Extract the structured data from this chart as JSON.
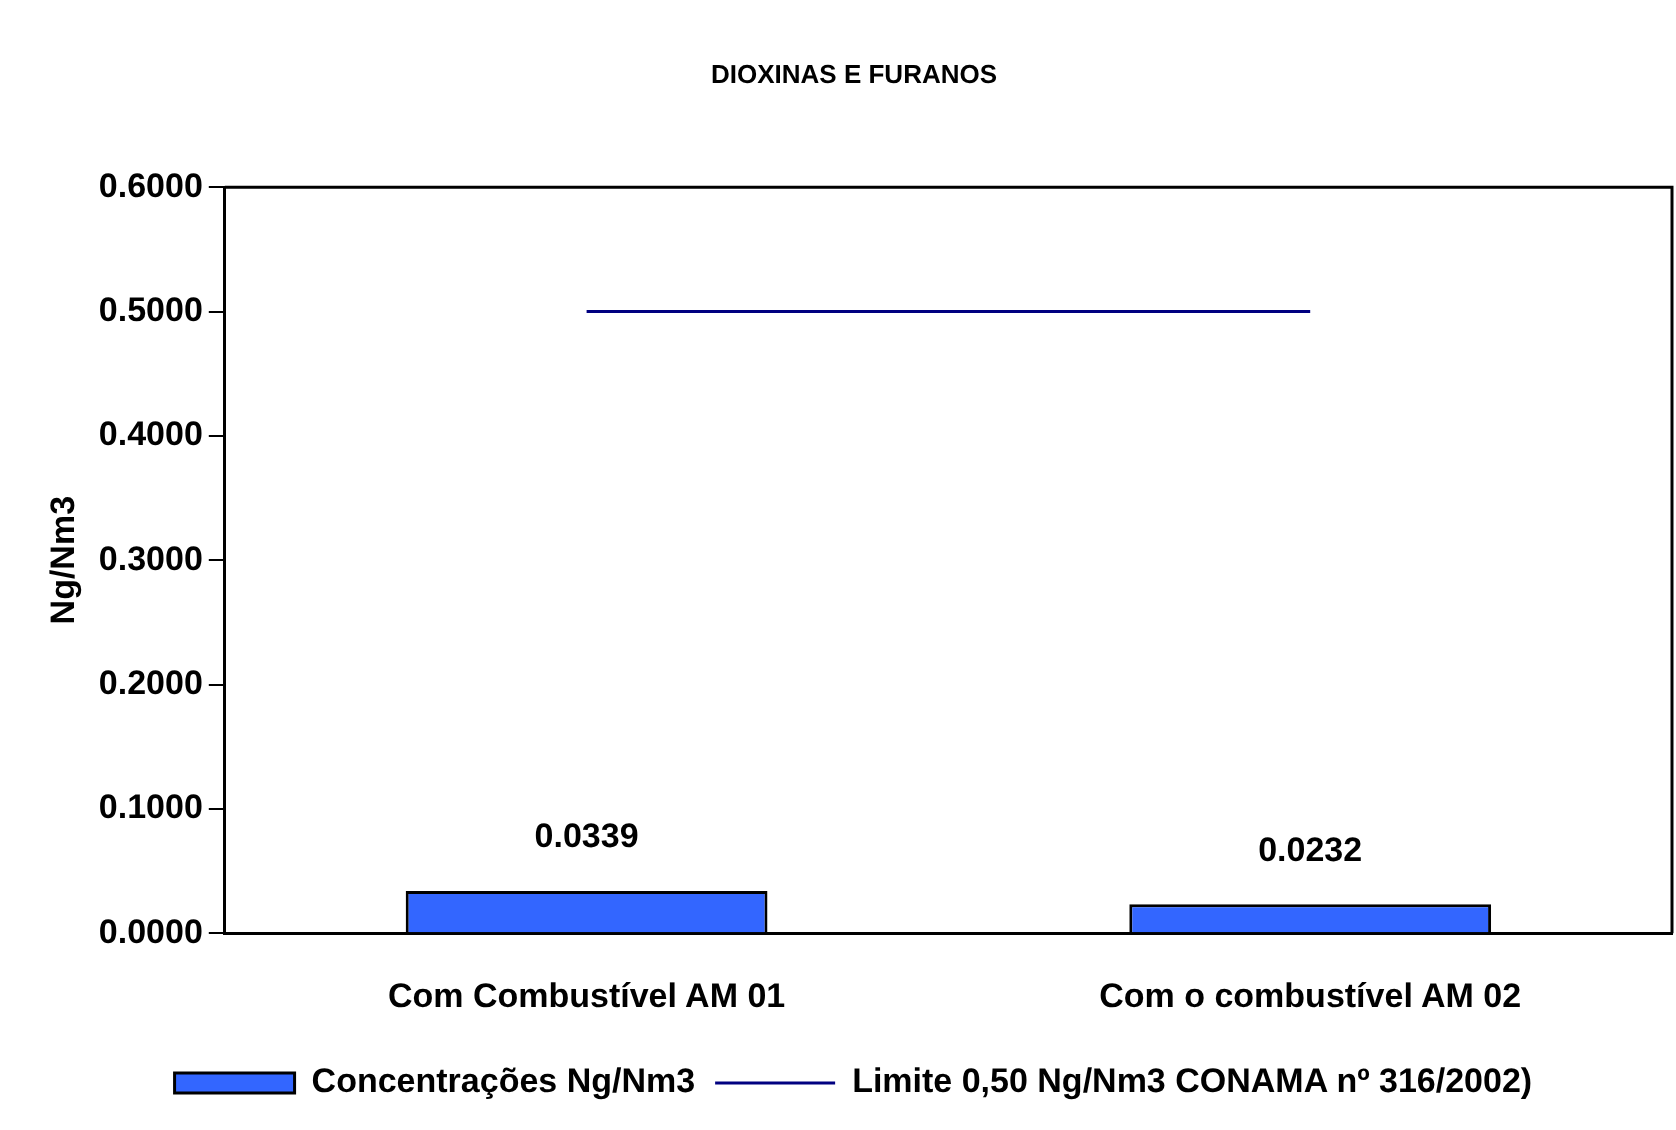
{
  "chart_data": {
    "type": "bar",
    "title": "DIOXINAS E FURANOS",
    "ylabel": "Ng/Nm3",
    "categories": [
      "Com Combustível AM 01",
      "Com o combustível AM 02"
    ],
    "series": [
      {
        "name": "Concentrações Ng/Nm3",
        "color": "#3366ff",
        "values": [
          0.0339,
          0.0232
        ],
        "value_labels": [
          "0.0339",
          "0.0232"
        ]
      },
      {
        "name": "Limite 0,50 Ng/Nm3 CONAMA nº 316/2002)",
        "type": "line",
        "color": "#000080",
        "values": [
          0.5,
          0.5
        ]
      }
    ],
    "ylim": [
      0,
      0.6
    ],
    "yticks": [
      {
        "value": 0,
        "label": "0.0000"
      },
      {
        "value": 0.1,
        "label": "0.1000"
      },
      {
        "value": 0.2,
        "label": "0.2000"
      },
      {
        "value": 0.3,
        "label": "0.3000"
      },
      {
        "value": 0.4,
        "label": "0.4000"
      },
      {
        "value": 0.5,
        "label": "0.5000"
      },
      {
        "value": 0.6,
        "label": "0.6000"
      }
    ],
    "grid": false,
    "legend": "bottom",
    "marker": "none"
  }
}
